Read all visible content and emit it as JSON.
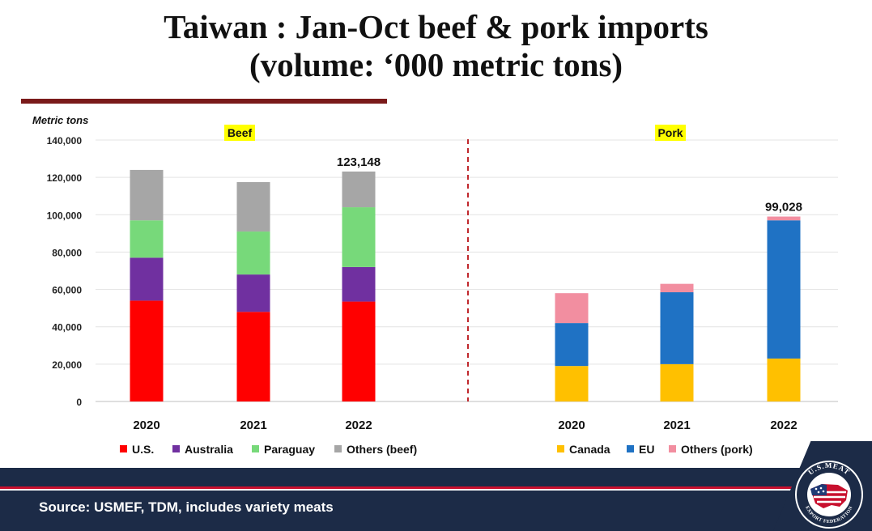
{
  "title_line1": "Taiwan : Jan-Oct beef  & pork imports",
  "title_line2": "(volume: ‘000 metric tons)",
  "source": "Source: USMEF, TDM, includes variety meats",
  "logo_text": "U.S. MEAT EXPORT FEDERATION",
  "colors": {
    "us": "#ff0000",
    "australia": "#7030a0",
    "paraguay": "#77d97a",
    "others_beef": "#a6a6a6",
    "canada": "#ffc000",
    "eu": "#1f72c4",
    "others_pork": "#f28ea0",
    "highlight": "#ffff00",
    "divider": "#c0282d",
    "footer": "#1c2b47"
  },
  "chart_data": [
    {
      "type": "bar",
      "stacked": true,
      "panel_label": "Beef",
      "ylabel": "Metric tons",
      "ylim": [
        0,
        140000
      ],
      "yticks": [
        "0",
        "20,000",
        "40,000",
        "60,000",
        "80,000",
        "100,000",
        "120,000",
        "140,000"
      ],
      "grid": true,
      "categories": [
        "2020",
        "2021",
        "2022"
      ],
      "series": [
        {
          "name": "U.S.",
          "values": [
            54000,
            48000,
            53500
          ]
        },
        {
          "name": "Australia",
          "values": [
            23000,
            20000,
            18500
          ]
        },
        {
          "name": "Paraguay",
          "values": [
            20000,
            23000,
            32000
          ]
        },
        {
          "name": "Others (beef)",
          "values": [
            27000,
            26500,
            19148
          ]
        }
      ],
      "annotations": [
        {
          "category": "2022",
          "text": "123,148"
        }
      ],
      "legend": "bottom"
    },
    {
      "type": "bar",
      "stacked": true,
      "panel_label": "Pork",
      "ylim": [
        0,
        140000
      ],
      "grid": true,
      "categories": [
        "2020",
        "2021",
        "2022"
      ],
      "series": [
        {
          "name": "Canada",
          "values": [
            19000,
            20000,
            23000
          ]
        },
        {
          "name": "EU",
          "values": [
            23000,
            38500,
            74000
          ]
        },
        {
          "name": "Others (pork)",
          "values": [
            16000,
            4500,
            2028
          ]
        }
      ],
      "annotations": [
        {
          "category": "2022",
          "text": "99,028"
        }
      ],
      "legend": "bottom"
    }
  ]
}
